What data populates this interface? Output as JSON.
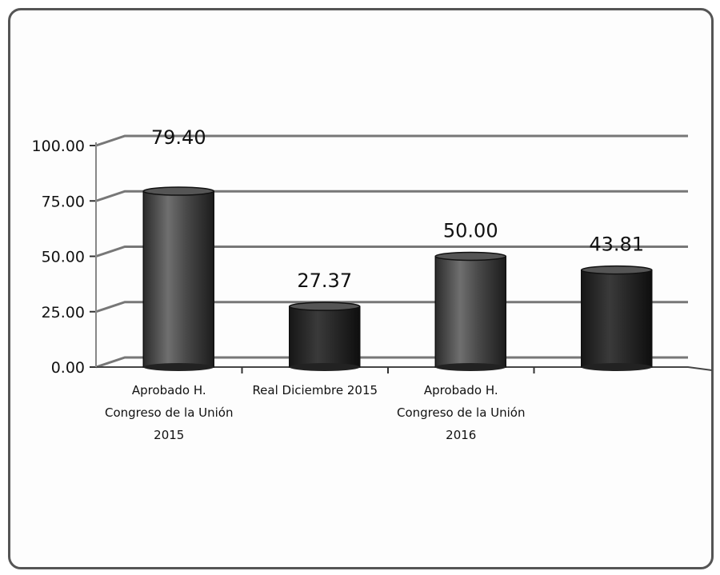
{
  "chart_data": {
    "type": "bar",
    "style": "3d-cylinder",
    "categories": [
      [
        "Aprobado H.",
        "Congreso de la Unión",
        "2015"
      ],
      [
        "Real Diciembre 2015"
      ],
      [
        "Aprobado H.",
        "Congreso de la Unión",
        "2016"
      ],
      [
        ""
      ]
    ],
    "values": [
      79.4,
      27.37,
      50.0,
      43.81
    ],
    "value_labels": [
      "79.40",
      "27.37",
      "50.00",
      "43.81"
    ],
    "ylim": [
      0,
      100
    ],
    "yticks": [
      "0.00",
      "25.00",
      "50.00",
      "75.00",
      "100.00"
    ],
    "grid": true,
    "colors": {
      "bar": "#3a3a3a",
      "bar_highlight": "#8a8a8a",
      "grid": "#777777"
    }
  }
}
